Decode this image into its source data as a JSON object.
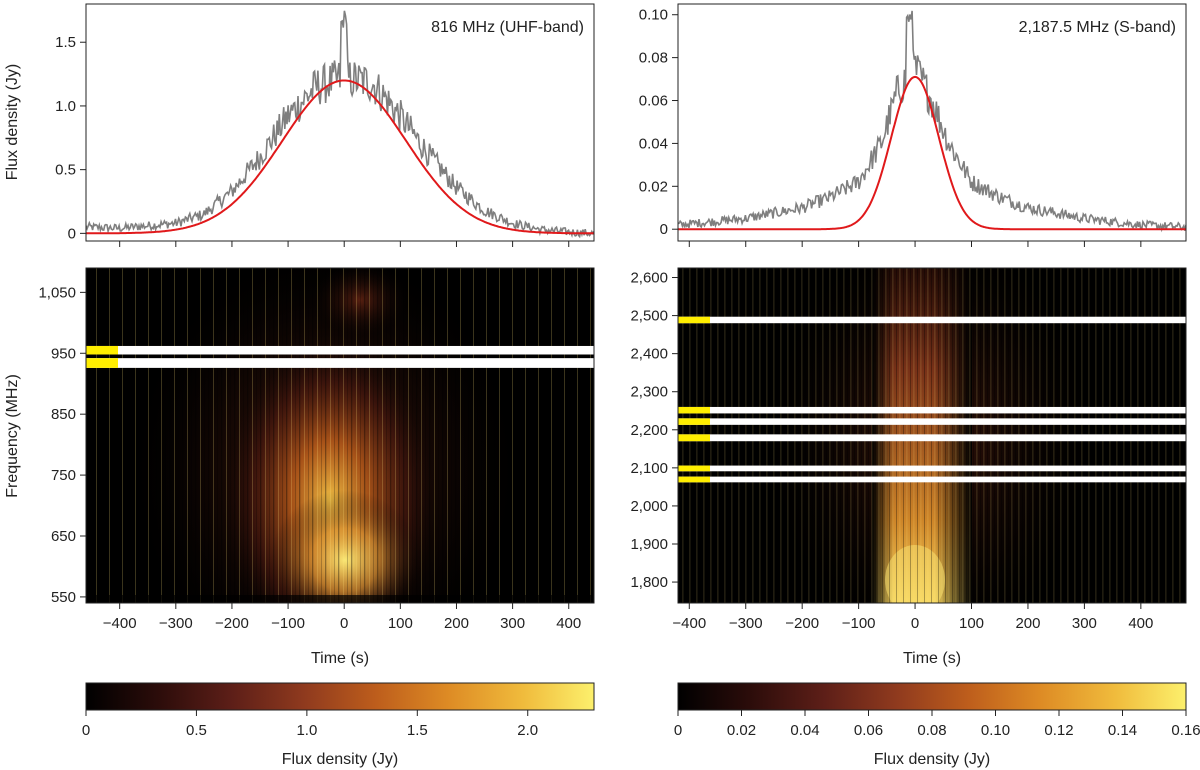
{
  "chart_data": [
    {
      "type": "line",
      "panel": "UHF light curve",
      "annotation": "816 MHz (UHF-band)",
      "ylabel": "Flux density (Jy)",
      "xlim": [
        -460,
        445
      ],
      "ylim": [
        -0.06,
        1.8
      ],
      "xticks": [
        -400,
        -300,
        -200,
        -100,
        0,
        100,
        200,
        300,
        400
      ],
      "yticks": [
        0,
        0.5,
        1.0,
        1.5
      ],
      "ytick_labels": [
        "0",
        "0.5",
        "1.0",
        "1.5"
      ],
      "series": [
        {
          "role": "data",
          "color": "#7f7f7f",
          "x": [
            -460,
            -400,
            -300,
            -250,
            -200,
            -150,
            -100,
            -50,
            0,
            50,
            100,
            150,
            200,
            250,
            300,
            350,
            400,
            445
          ],
          "y": [
            0.05,
            0.04,
            0.08,
            0.15,
            0.33,
            0.6,
            0.92,
            1.15,
            1.22,
            1.18,
            0.92,
            0.62,
            0.36,
            0.18,
            0.08,
            0.03,
            0.01,
            0.0
          ],
          "peak": [
            0,
            1.75
          ]
        },
        {
          "role": "fit",
          "color": "#e0191b",
          "model": "gaussian",
          "amplitude": 1.2,
          "center": 0,
          "sigma": 110
        }
      ]
    },
    {
      "type": "line",
      "panel": "S-band light curve",
      "annotation": "2,187.5 MHz (S-band)",
      "xlim": [
        -420,
        480
      ],
      "ylim": [
        -0.0055,
        0.105
      ],
      "xticks": [
        -400,
        -300,
        -200,
        -100,
        0,
        100,
        200,
        300,
        400
      ],
      "yticks": [
        0,
        0.02,
        0.04,
        0.06,
        0.08,
        0.1
      ],
      "ytick_labels": [
        "0",
        "0.02",
        "0.04",
        "0.06",
        "0.08",
        "0.10"
      ],
      "series": [
        {
          "role": "data",
          "color": "#7f7f7f",
          "x": [
            -420,
            -300,
            -200,
            -150,
            -100,
            -60,
            -30,
            0,
            30,
            60,
            100,
            150,
            200,
            300,
            400,
            480
          ],
          "y": [
            0.002,
            0.005,
            0.01,
            0.015,
            0.022,
            0.04,
            0.065,
            0.075,
            0.06,
            0.04,
            0.022,
            0.015,
            0.01,
            0.005,
            0.002,
            0.001
          ],
          "peak": [
            -10,
            0.102
          ]
        },
        {
          "role": "fit",
          "color": "#e0191b",
          "model": "gaussian",
          "amplitude": 0.071,
          "center": 0,
          "sigma": 42
        }
      ]
    },
    {
      "type": "heatmap",
      "panel": "UHF dynamic spectrum",
      "xlabel": "Time (s)",
      "ylabel": "Frequency (MHz)",
      "xlim": [
        -460,
        445
      ],
      "ylim": [
        540,
        1090
      ],
      "xticks": [
        -400,
        -300,
        -200,
        -100,
        0,
        100,
        200,
        300,
        400
      ],
      "yticks": [
        550,
        650,
        750,
        850,
        950,
        1050
      ],
      "ytick_labels": [
        "550",
        "650",
        "750",
        "850",
        "950",
        "1,050"
      ],
      "flagged_bands_mhz": [
        [
          948,
          962
        ],
        [
          926,
          942
        ]
      ],
      "colorbar": {
        "label": "Flux density (Jy)",
        "range": [
          0,
          2.3
        ],
        "ticks": [
          0,
          0.5,
          1.0,
          1.5,
          2.0
        ],
        "tick_labels": [
          "0",
          "0.5",
          "1.0",
          "1.5",
          "2.0"
        ]
      }
    },
    {
      "type": "heatmap",
      "panel": "S-band dynamic spectrum",
      "xlabel": "Time (s)",
      "xlim": [
        -420,
        480
      ],
      "ylim": [
        1745,
        2625
      ],
      "xticks": [
        -400,
        -300,
        -200,
        -100,
        0,
        100,
        200,
        300,
        400
      ],
      "yticks": [
        1800,
        1900,
        2000,
        2100,
        2200,
        2300,
        2400,
        2500,
        2600
      ],
      "ytick_labels": [
        "1,800",
        "1,900",
        "2,000",
        "2,100",
        "2,200",
        "2,300",
        "2,400",
        "2,500",
        "2,600"
      ],
      "flagged_bands_mhz": [
        [
          2480,
          2497
        ],
        [
          2243,
          2260
        ],
        [
          2213,
          2230
        ],
        [
          2170,
          2188
        ],
        [
          2091,
          2106
        ],
        [
          2062,
          2077
        ]
      ],
      "colorbar": {
        "label": "Flux density (Jy)",
        "range": [
          0,
          0.16
        ],
        "ticks": [
          0,
          0.02,
          0.04,
          0.06,
          0.08,
          0.1,
          0.12,
          0.14,
          0.16
        ],
        "tick_labels": [
          "0",
          "0.02",
          "0.04",
          "0.06",
          "0.08",
          "0.10",
          "0.12",
          "0.14",
          "0.16"
        ]
      }
    }
  ],
  "colors": {
    "data": "#7f7f7f",
    "fit": "#e0191b",
    "flag": "#ffffff",
    "flag_marker": "#ffee00",
    "colormap": [
      "#000000",
      "#2b0c0a",
      "#5e1f18",
      "#8f3a1e",
      "#bd5d1c",
      "#dd8a24",
      "#f0bb3c",
      "#fcf06c"
    ]
  }
}
